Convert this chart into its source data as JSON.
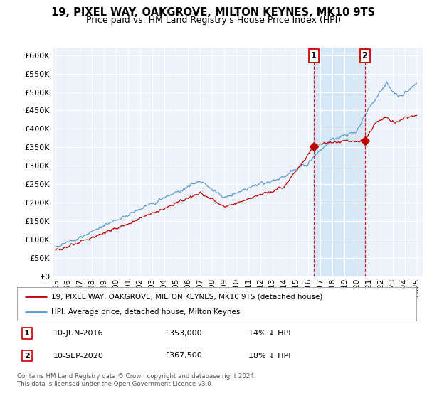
{
  "title": "19, PIXEL WAY, OAKGROVE, MILTON KEYNES, MK10 9TS",
  "subtitle": "Price paid vs. HM Land Registry's House Price Index (HPI)",
  "hpi_color": "#5b9bd5",
  "price_color": "#c00000",
  "shade_color": "#d6e8f7",
  "background_color": "#ffffff",
  "plot_bg_color": "#eef2fb",
  "grid_color": "#ffffff",
  "ylim": [
    0,
    620000
  ],
  "yticks": [
    0,
    50000,
    100000,
    150000,
    200000,
    250000,
    300000,
    350000,
    400000,
    450000,
    500000,
    550000,
    600000
  ],
  "ytick_labels": [
    "£0",
    "£50K",
    "£100K",
    "£150K",
    "£200K",
    "£250K",
    "£300K",
    "£350K",
    "£400K",
    "£450K",
    "£500K",
    "£550K",
    "£600K"
  ],
  "sale1_date": 2016.44,
  "sale1_price": 353000,
  "sale2_date": 2020.69,
  "sale2_price": 367500,
  "legend_line1": "19, PIXEL WAY, OAKGROVE, MILTON KEYNES, MK10 9TS (detached house)",
  "legend_line2": "HPI: Average price, detached house, Milton Keynes",
  "footer": "Contains HM Land Registry data © Crown copyright and database right 2024.\nThis data is licensed under the Open Government Licence v3.0.",
  "xlim_start": 1994.8,
  "xlim_end": 2025.5
}
